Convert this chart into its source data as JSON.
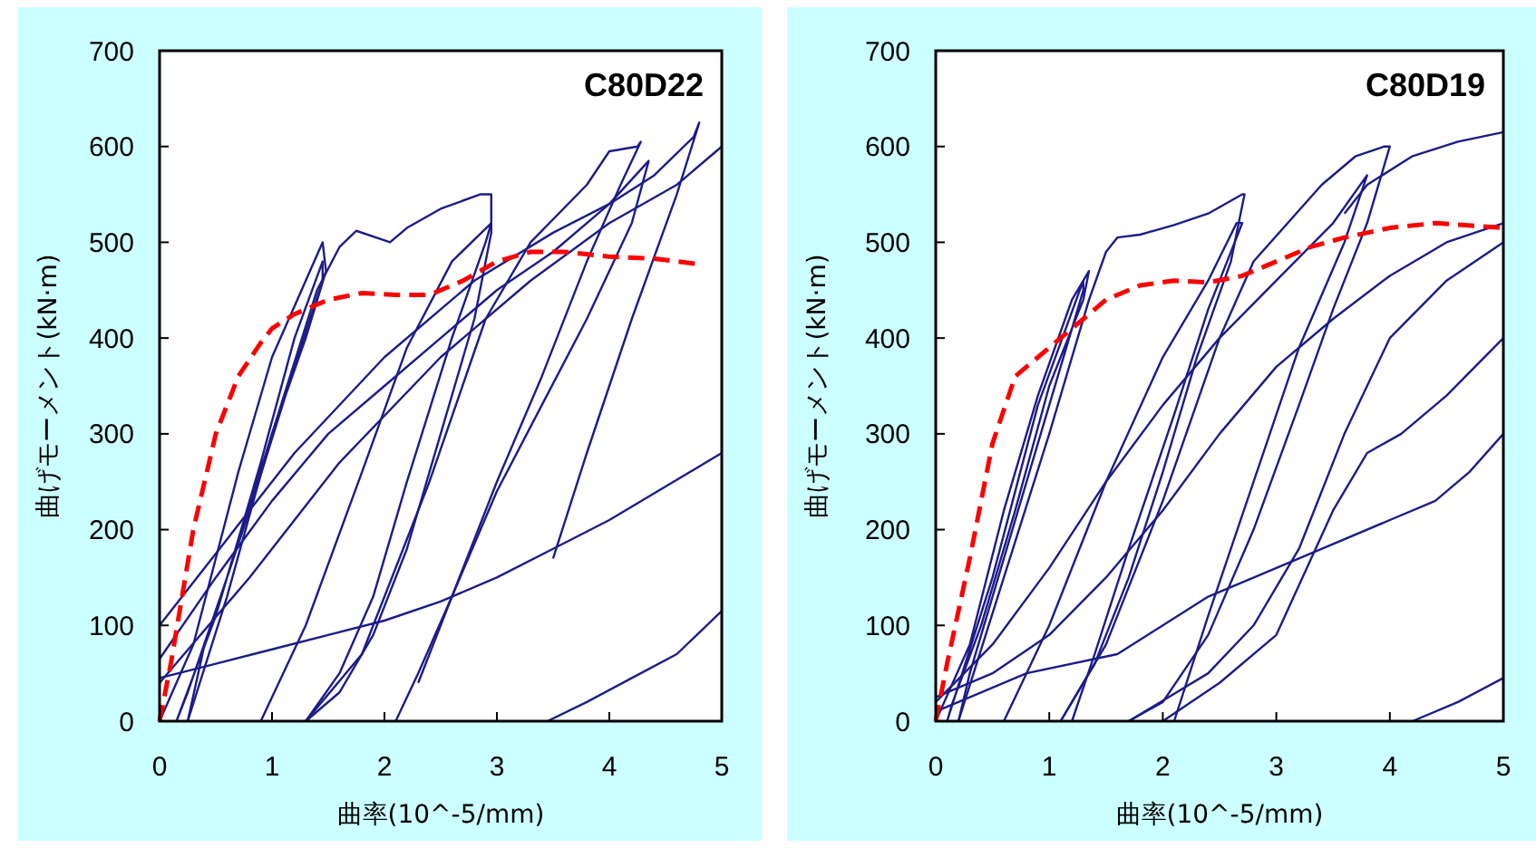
{
  "chart_data": [
    {
      "type": "line",
      "title": "C80D22",
      "xlabel": "曲率(10^-5/mm)",
      "ylabel": "曲げモーメント(kN·m)",
      "xlim": [
        0,
        5
      ],
      "ylim": [
        0,
        700
      ],
      "xticks": [
        0,
        1,
        2,
        3,
        4,
        5
      ],
      "yticks": [
        0,
        100,
        200,
        300,
        400,
        500,
        600,
        700
      ],
      "grid": false,
      "series": [
        {
          "color": "#1c1c8a",
          "x": [
            0,
            0.3,
            0.7,
            1.0,
            1.3,
            1.45,
            1.48,
            1.3,
            1.0,
            0.6,
            0.25,
            0.15,
            0.5,
            0.9,
            1.2,
            1.45,
            1.45,
            1.2,
            0.8,
            0.4,
            0.25
          ],
          "values": [
            0,
            80,
            260,
            380,
            460,
            500,
            470,
            400,
            300,
            150,
            30,
            0,
            110,
            270,
            400,
            480,
            460,
            370,
            220,
            80,
            0
          ]
        },
        {
          "color": "#1c1c8a",
          "x": [
            0.25,
            0.6,
            1.0,
            1.4,
            1.6,
            1.75,
            2.05,
            2.2,
            2.5,
            2.85,
            2.95,
            2.95,
            2.8,
            2.5,
            2.2,
            1.9,
            1.6,
            1.3
          ],
          "values": [
            0,
            130,
            300,
            450,
            495,
            512,
            500,
            515,
            535,
            550,
            550,
            510,
            420,
            300,
            180,
            90,
            30,
            0
          ]
        },
        {
          "color": "#1c1c8a",
          "x": [
            0.9,
            1.3,
            1.8,
            2.2,
            2.6,
            2.95,
            2.9,
            2.6,
            2.2,
            1.9,
            1.6,
            1.3
          ],
          "values": [
            0,
            100,
            260,
            390,
            480,
            520,
            500,
            400,
            250,
            130,
            50,
            0
          ]
        },
        {
          "color": "#1c1c8a",
          "x": [
            1.3,
            1.8,
            2.4,
            2.9,
            3.3,
            3.8,
            4.0,
            4.25,
            4.28,
            4.1,
            3.8,
            3.4,
            3.0,
            2.6,
            2.3,
            2.1
          ],
          "values": [
            0,
            70,
            250,
            420,
            500,
            560,
            595,
            600,
            605,
            560,
            480,
            360,
            250,
            130,
            50,
            0
          ]
        },
        {
          "color": "#1c1c8a",
          "x": [
            0,
            0.5,
            1.0,
            1.5,
            2.0,
            2.5,
            3.0,
            3.5,
            4.0,
            4.35,
            4.2,
            3.8,
            3.4,
            3.0,
            2.6,
            2.3
          ],
          "values": [
            65,
            150,
            230,
            300,
            350,
            400,
            450,
            490,
            540,
            585,
            520,
            420,
            330,
            240,
            130,
            40
          ]
        },
        {
          "color": "#1c1c8a",
          "x": [
            0,
            0.6,
            1.2,
            2.0,
            2.8,
            3.5,
            4.0,
            4.4,
            4.75,
            4.8,
            4.6,
            4.2,
            3.8,
            3.5
          ],
          "values": [
            100,
            190,
            280,
            380,
            460,
            510,
            540,
            570,
            610,
            625,
            550,
            420,
            280,
            170
          ]
        },
        {
          "color": "#1c1c8a",
          "x": [
            0,
            0.5,
            1,
            1.5,
            2,
            2.5,
            3,
            3.5,
            4,
            4.5,
            5
          ],
          "values": [
            45,
            60,
            75,
            90,
            105,
            125,
            150,
            180,
            210,
            245,
            280
          ]
        },
        {
          "color": "#1c1c8a",
          "x": [
            3.45,
            3.8,
            4.2,
            4.6,
            5
          ],
          "values": [
            0,
            20,
            45,
            70,
            115
          ]
        },
        {
          "color": "#1c1c8a",
          "x": [
            0,
            0.8,
            1.6,
            2.5,
            3.3,
            4.0,
            4.6,
            5
          ],
          "values": [
            40,
            150,
            270,
            380,
            460,
            520,
            560,
            600
          ]
        },
        {
          "color": "#ff0000",
          "line_style": "dashed",
          "x": [
            0,
            0.1,
            0.3,
            0.5,
            0.7,
            0.9,
            1.0,
            1.2,
            1.5,
            1.8,
            2.1,
            2.4,
            2.7,
            3.0,
            3.3,
            3.6,
            4.0,
            4.4,
            4.8
          ],
          "values": [
            0,
            60,
            200,
            300,
            360,
            395,
            410,
            425,
            440,
            447,
            445,
            445,
            460,
            480,
            490,
            490,
            485,
            483,
            477
          ]
        }
      ]
    },
    {
      "type": "line",
      "title": "C80D19",
      "xlabel": "曲率(10^-5/mm)",
      "ylabel": "曲げモーメント(kN·m)",
      "xlim": [
        0,
        5
      ],
      "ylim": [
        0,
        700
      ],
      "xticks": [
        0,
        1,
        2,
        3,
        4,
        5
      ],
      "yticks": [
        0,
        100,
        200,
        300,
        400,
        500,
        600,
        700
      ],
      "grid": false,
      "series": [
        {
          "color": "#1c1c8a",
          "x": [
            0,
            0.3,
            0.6,
            0.9,
            1.2,
            1.35,
            1.3,
            1.0,
            0.7,
            0.4,
            0.15,
            0.1,
            0.5,
            0.9,
            1.3,
            1.3,
            1.0,
            0.6,
            0.3,
            0.2
          ],
          "values": [
            0,
            80,
            220,
            340,
            440,
            470,
            440,
            350,
            220,
            100,
            20,
            0,
            150,
            330,
            460,
            450,
            330,
            170,
            50,
            0
          ]
        },
        {
          "color": "#1c1c8a",
          "x": [
            0.2,
            0.6,
            1.0,
            1.35,
            1.5,
            1.6,
            1.8,
            2.1,
            2.4,
            2.7,
            2.72,
            2.6,
            2.3,
            2.0,
            1.7,
            1.4,
            1.1
          ],
          "values": [
            0,
            150,
            300,
            440,
            490,
            505,
            508,
            518,
            530,
            550,
            550,
            480,
            380,
            260,
            150,
            60,
            0
          ]
        },
        {
          "color": "#1c1c8a",
          "x": [
            0.6,
            1.0,
            1.5,
            2.0,
            2.4,
            2.65,
            2.7,
            2.4,
            2.1,
            1.7,
            1.4,
            1.2
          ],
          "values": [
            0,
            100,
            250,
            380,
            460,
            520,
            520,
            430,
            320,
            180,
            70,
            0
          ]
        },
        {
          "color": "#1c1c8a",
          "x": [
            1.1,
            1.5,
            2.0,
            2.5,
            2.8,
            3.1,
            3.4,
            3.7,
            3.95,
            4.0,
            3.8,
            3.5,
            3.2,
            2.8,
            2.4,
            2.0,
            1.7
          ],
          "values": [
            0,
            80,
            230,
            400,
            480,
            520,
            560,
            590,
            600,
            600,
            520,
            430,
            330,
            200,
            90,
            20,
            0
          ]
        },
        {
          "color": "#1c1c8a",
          "x": [
            0,
            0.5,
            1.0,
            1.5,
            2.0,
            2.5,
            3.0,
            3.5,
            3.8,
            3.6,
            3.2,
            2.8,
            2.4,
            2.1
          ],
          "values": [
            20,
            80,
            160,
            250,
            330,
            400,
            460,
            520,
            570,
            500,
            390,
            250,
            110,
            0
          ]
        },
        {
          "color": "#1c1c8a",
          "x": [
            3.6,
            3.8,
            4.2,
            4.6,
            5
          ],
          "values": [
            530,
            560,
            590,
            605,
            615
          ]
        },
        {
          "color": "#1c1c8a",
          "x": [
            0,
            0.5,
            1.0,
            1.5,
            2.0,
            2.5,
            3.0,
            3.5,
            4.0,
            4.5,
            5
          ],
          "values": [
            25,
            50,
            90,
            150,
            220,
            300,
            370,
            420,
            465,
            500,
            520
          ]
        },
        {
          "color": "#1c1c8a",
          "x": [
            0,
            0.8,
            1.6,
            2.4,
            3.2,
            4.0,
            4.4,
            4.7,
            5
          ],
          "values": [
            10,
            50,
            70,
            130,
            170,
            210,
            230,
            260,
            300
          ]
        },
        {
          "color": "#1c1c8a",
          "x": [
            1.7,
            2.4,
            2.8,
            3.2,
            3.6,
            4.0,
            4.5,
            5
          ],
          "values": [
            0,
            50,
            100,
            180,
            300,
            400,
            460,
            500
          ]
        },
        {
          "color": "#1c1c8a",
          "x": [
            2.0,
            2.5,
            3.0,
            3.5,
            3.8,
            4.1,
            4.5,
            5
          ],
          "values": [
            0,
            40,
            90,
            220,
            280,
            300,
            340,
            400
          ]
        },
        {
          "color": "#1c1c8a",
          "x": [
            4.2,
            4.6,
            5
          ],
          "values": [
            0,
            20,
            45
          ]
        },
        {
          "color": "#ff0000",
          "line_style": "dashed",
          "x": [
            0,
            0.1,
            0.3,
            0.5,
            0.7,
            1.0,
            1.2,
            1.5,
            1.8,
            2.1,
            2.4,
            2.7,
            3.0,
            3.3,
            3.6,
            4.0,
            4.4,
            5
          ],
          "values": [
            0,
            60,
            170,
            290,
            360,
            390,
            410,
            440,
            455,
            460,
            458,
            465,
            480,
            495,
            505,
            515,
            520,
            515
          ]
        }
      ]
    }
  ]
}
